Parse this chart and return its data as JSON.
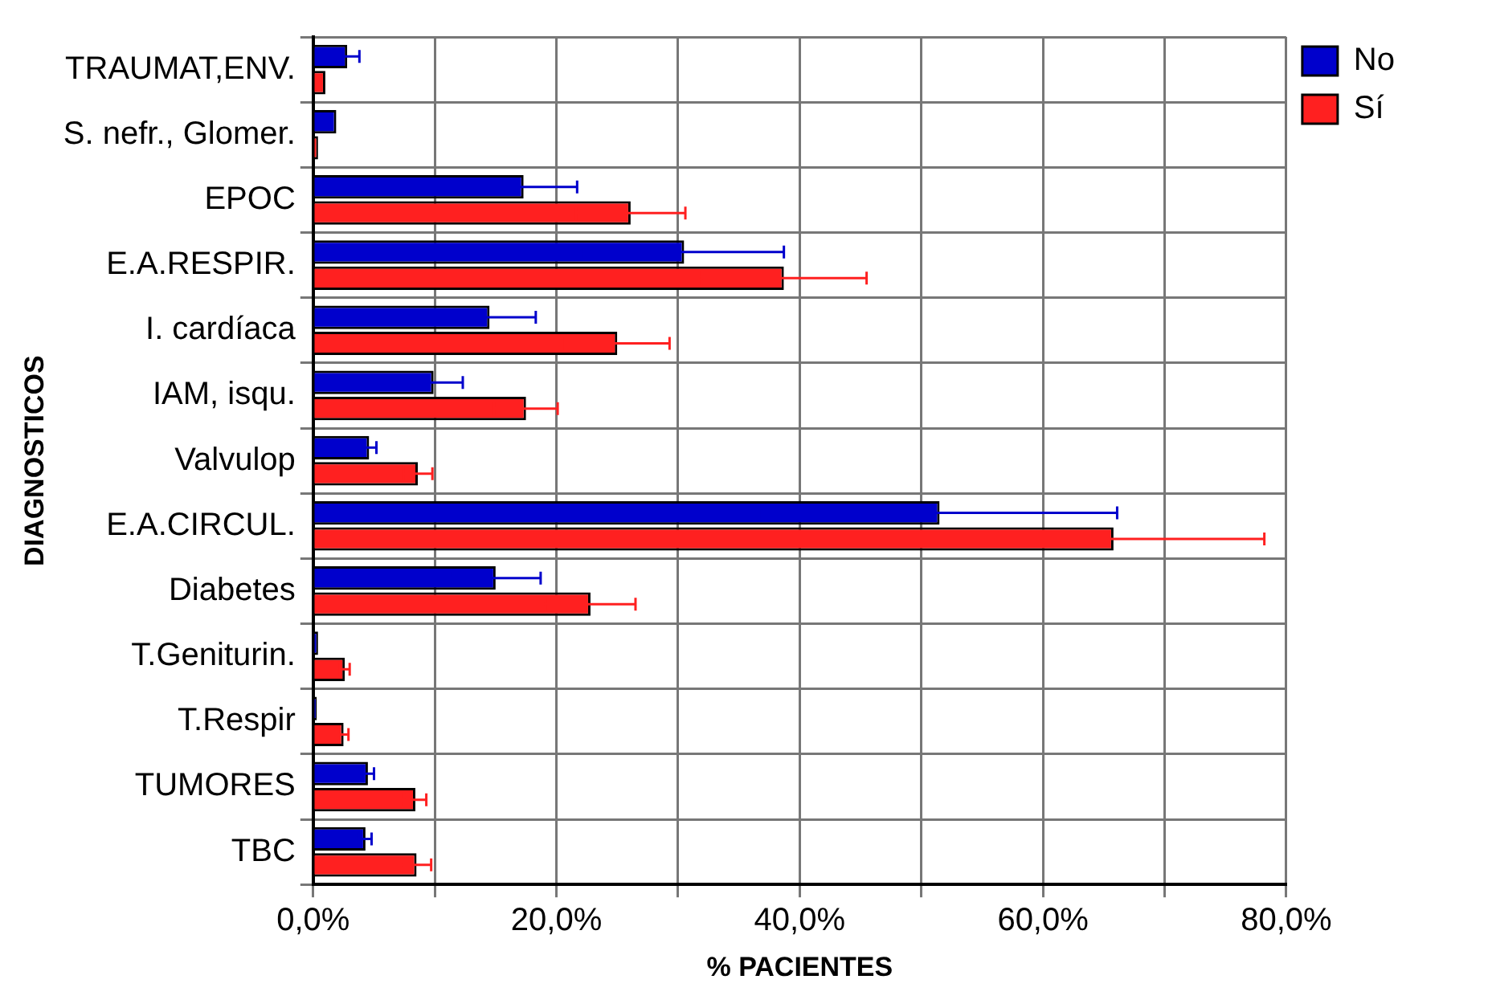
{
  "chart_data": {
    "type": "bar",
    "orientation": "horizontal",
    "xlabel": "% PACIENTES",
    "ylabel": "DIAGNOSTICOS",
    "categories": [
      "TRAUMAT,ENV.",
      "S. nefr., Glomer.",
      "EPOC",
      "E.A.RESPIR.",
      "I. cardíaca",
      "IAM, isqu.",
      "Valvulop",
      "E.A.CIRCUL.",
      "Diabetes",
      "T.Geniturin.",
      "T.Respir",
      "TUMORES",
      "TBC"
    ],
    "series": [
      {
        "name": "No",
        "color": "#0000cc",
        "values": [
          2.8,
          1.9,
          17.3,
          30.5,
          14.5,
          9.9,
          4.6,
          51.5,
          15.0,
          0.4,
          0.3,
          4.5,
          4.3
        ],
        "errors": [
          1.0,
          null,
          4.4,
          8.2,
          3.8,
          2.4,
          0.6,
          14.6,
          3.7,
          null,
          null,
          0.5,
          0.5
        ]
      },
      {
        "name": "Sí",
        "color": "#ff2020",
        "values": [
          1.0,
          0.4,
          26.1,
          38.7,
          25.0,
          17.5,
          8.6,
          65.8,
          22.8,
          2.6,
          2.5,
          8.4,
          8.5
        ],
        "errors": [
          null,
          null,
          4.5,
          6.8,
          4.3,
          2.6,
          1.2,
          12.4,
          3.7,
          0.4,
          0.4,
          0.9,
          1.2
        ]
      }
    ],
    "xlim": [
      0,
      80
    ],
    "xticks": [
      {
        "value": 0,
        "label": "0,0%"
      },
      {
        "value": 10,
        "label": null
      },
      {
        "value": 20,
        "label": "20,0%"
      },
      {
        "value": 30,
        "label": null
      },
      {
        "value": 40,
        "label": "40,0%"
      },
      {
        "value": 50,
        "label": null
      },
      {
        "value": 60,
        "label": "60,0%"
      },
      {
        "value": 70,
        "label": null
      },
      {
        "value": 80,
        "label": "80,0%"
      }
    ],
    "grid": true,
    "legend": "top right"
  }
}
